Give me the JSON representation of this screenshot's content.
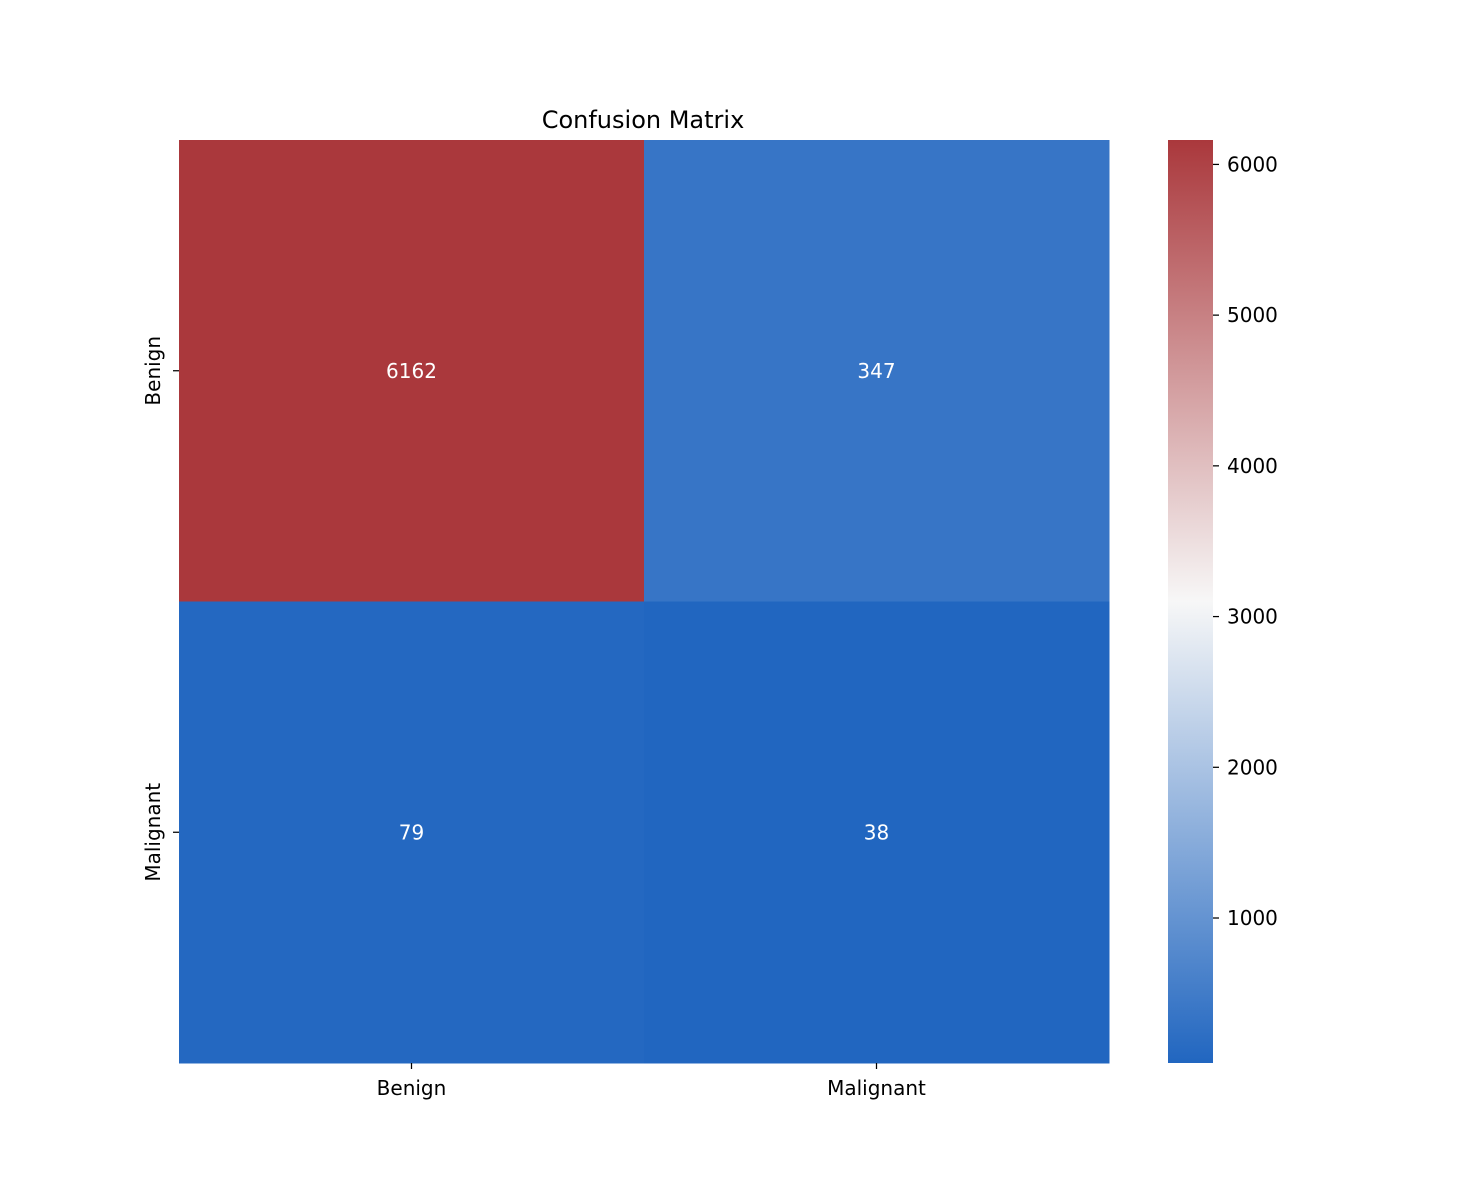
{
  "chart_data": {
    "type": "heatmap",
    "title": "Confusion Matrix",
    "xlabel": "",
    "ylabel": "",
    "x_categories": [
      "Benign",
      "Malignant"
    ],
    "y_categories": [
      "Benign",
      "Malignant"
    ],
    "values": [
      [
        6162,
        347
      ],
      [
        79,
        38
      ]
    ],
    "annotations": [
      [
        "6162",
        "347"
      ],
      [
        "79",
        "38"
      ]
    ],
    "colorbar": {
      "colormap": "diverging blue-white-red",
      "range": [
        38,
        6162
      ],
      "ticks": [
        1000,
        2000,
        3000,
        4000,
        5000,
        6000
      ],
      "tick_labels": [
        "1000",
        "2000",
        "3000",
        "4000",
        "5000",
        "6000"
      ],
      "low_color": "#2166c0",
      "mid_color": "#f7f7f7",
      "high_color": "#aa383c"
    }
  }
}
